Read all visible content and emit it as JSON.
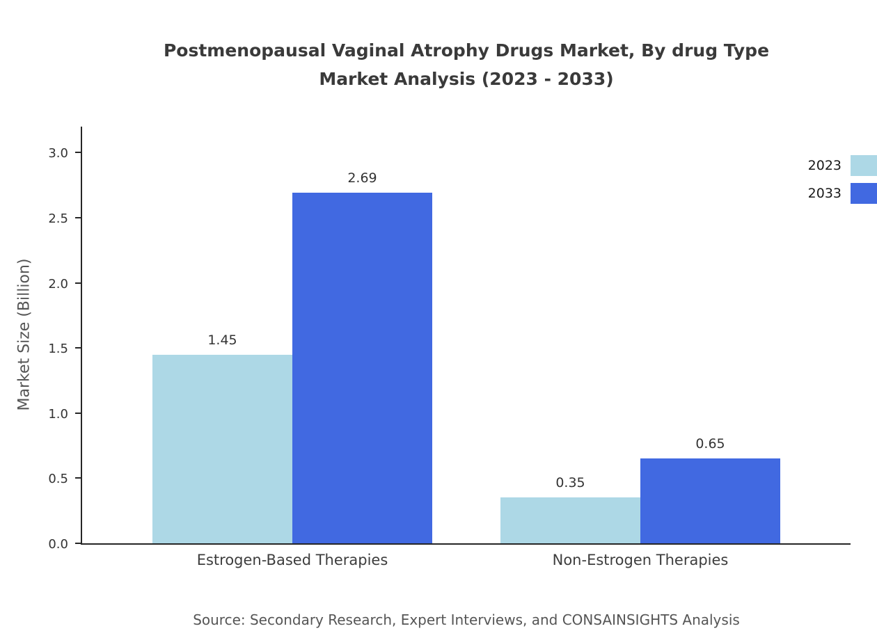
{
  "header": {
    "title_line1": "Postmenopausal Vaginal Atrophy Drugs Market, By drug Type",
    "title_line2": "Market Analysis (2023 - 2033)"
  },
  "footer": {
    "source": "Source: Secondary Research, Expert Interviews, and CONSAINSIGHTS Analysis"
  },
  "chart_data": {
    "type": "bar",
    "title": "Postmenopausal Vaginal Atrophy Drugs Market, By drug Type Market Analysis (2023 - 2033)",
    "categories": [
      "Estrogen-Based Therapies",
      "Non-Estrogen Therapies"
    ],
    "series": [
      {
        "name": "2023",
        "color": "#ADD8E6",
        "values": [
          1.45,
          0.35
        ]
      },
      {
        "name": "2033",
        "color": "#4169E1",
        "values": [
          2.69,
          0.65
        ]
      }
    ],
    "xlabel": "",
    "ylabel": "Market Size (Billion)",
    "ylim": [
      0,
      3.2
    ],
    "yticks": [
      0.0,
      0.5,
      1.0,
      1.5,
      2.0,
      2.5,
      3.0
    ],
    "grid": false,
    "legend_position": "top-right",
    "value_label_decimals": 2
  }
}
